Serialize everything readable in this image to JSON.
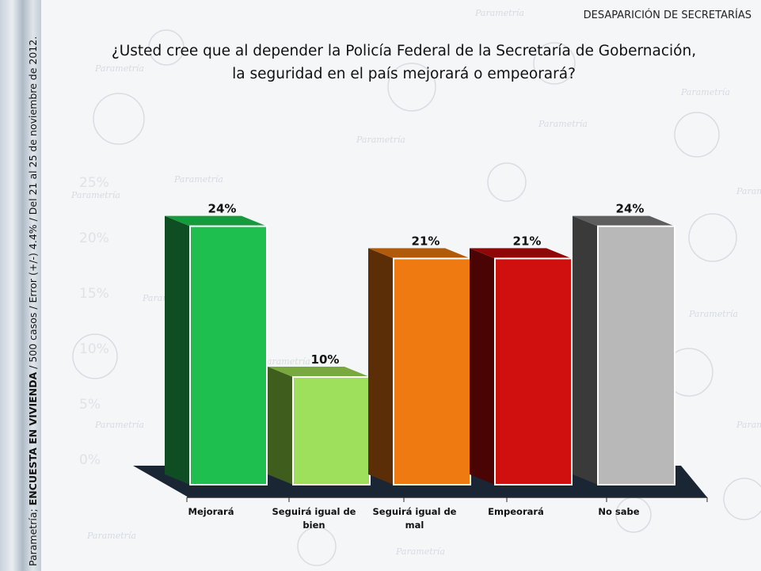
{
  "header": {
    "section_title": "DESAPARICIÓN DE SECRETARÍAS",
    "question_line1": "¿Usted cree que al depender la Policía Federal de la Secretaría de Gobernación,",
    "question_line2": "la seguridad en el país mejorará o empeorará?"
  },
  "side_note": {
    "prefix": "Parametría; ",
    "bold": "ENCUESTA EN VIVIENDA",
    "suffix": " / 500 casos / Error (+/-) 4.4% / Del 21 al 25 de noviembre de 2012."
  },
  "background": {
    "watermark_text": "Parametría",
    "faint_ticks": [
      "25%",
      "20%",
      "15%",
      "10%",
      "5%",
      "0%"
    ]
  },
  "chart_data": {
    "type": "bar",
    "categories": [
      "Mejorará",
      "Seguirá igual de bien",
      "Seguirá igual de mal",
      "Empeorará",
      "No sabe"
    ],
    "category_lines": [
      [
        "Mejorará"
      ],
      [
        "Seguirá igual de",
        "bien"
      ],
      [
        "Seguirá igual de",
        "mal"
      ],
      [
        "Empeorará"
      ],
      [
        "No sabe"
      ]
    ],
    "values": [
      24,
      10,
      21,
      21,
      24
    ],
    "value_labels": [
      "24%",
      "10%",
      "21%",
      "21%",
      "24%"
    ],
    "ylim": [
      0,
      25
    ],
    "colors": [
      {
        "front": "#1fbf4f",
        "side": "#0f4d22",
        "top": "#169a3e"
      },
      {
        "front": "#9ee05c",
        "side": "#3f5e1e",
        "top": "#78a83e"
      },
      {
        "front": "#f07a12",
        "side": "#5c2e08",
        "top": "#b25a0c"
      },
      {
        "front": "#d0100f",
        "side": "#4a0404",
        "top": "#8f0707"
      },
      {
        "front": "#b8b8b8",
        "side": "#3a3a3a",
        "top": "#5e5e5e"
      }
    ],
    "floor_color": "#1a2634",
    "axis_color": "#2a2a2a"
  }
}
